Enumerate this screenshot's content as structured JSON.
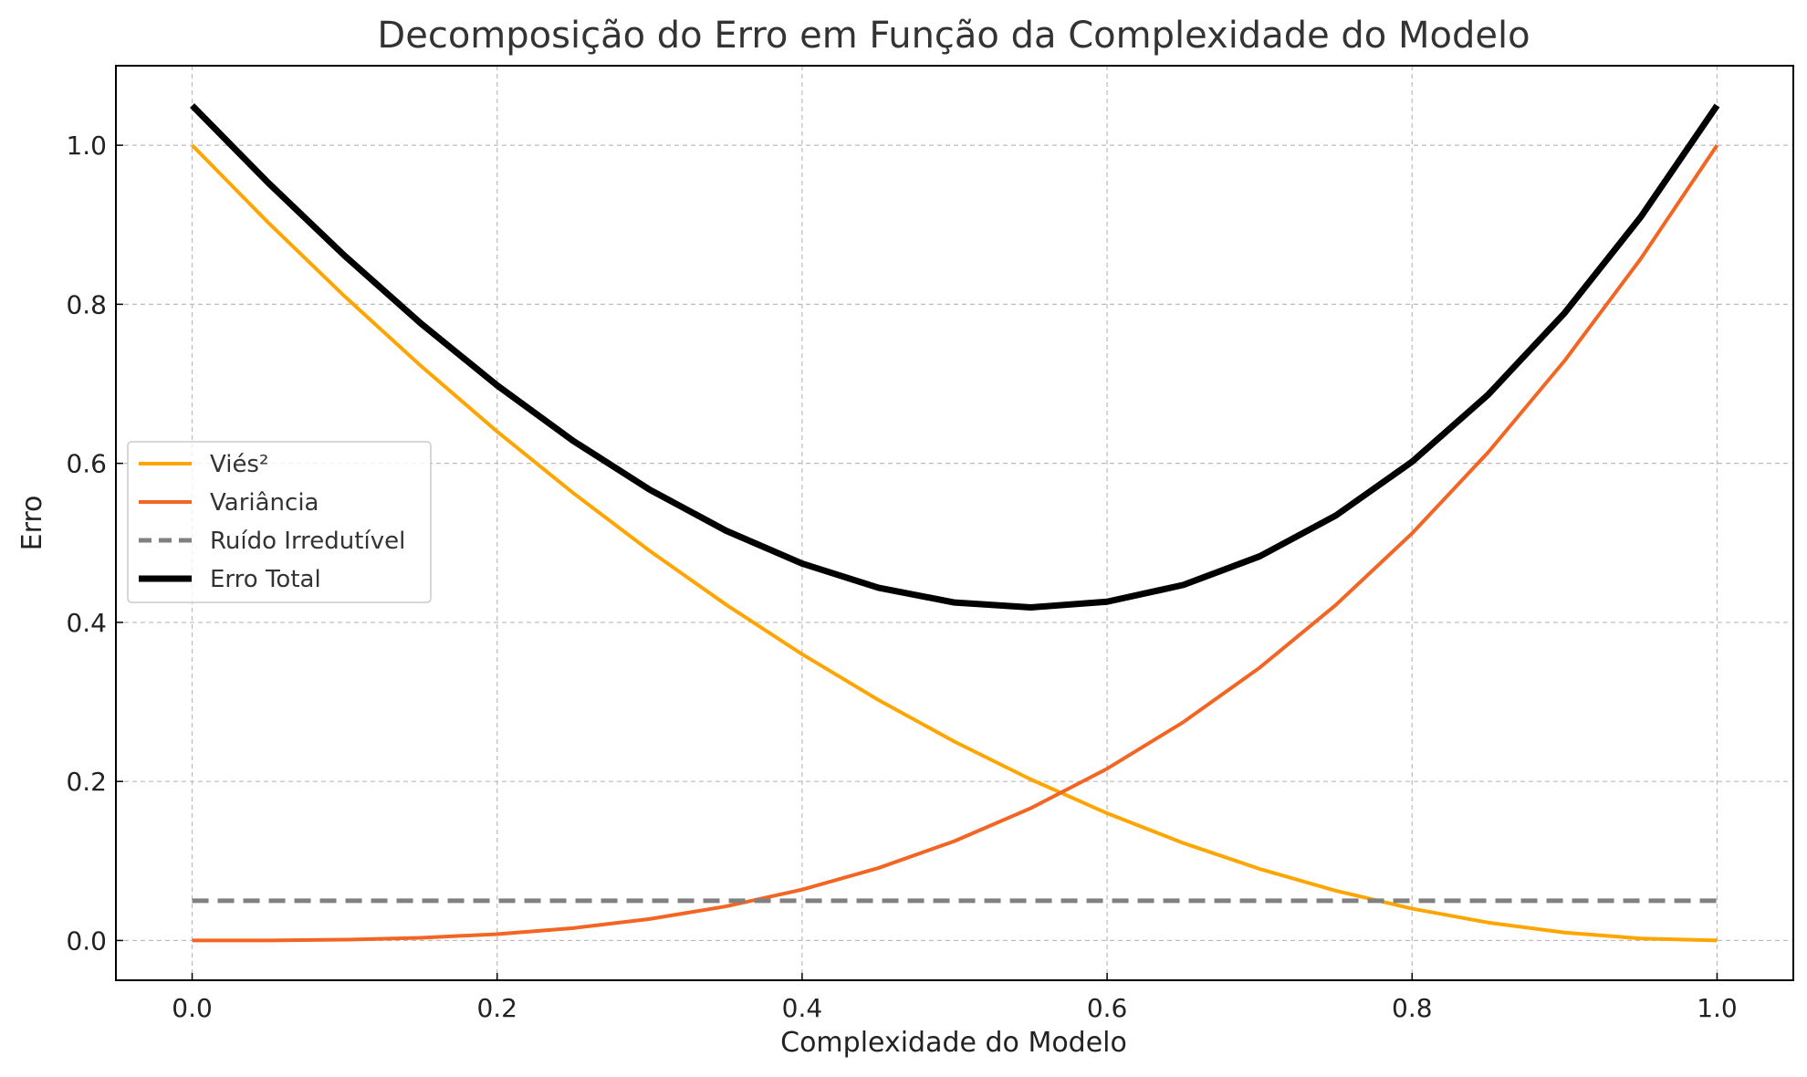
{
  "chart_data": {
    "type": "line",
    "title": "Decomposição do Erro em Função da Complexidade do Modelo",
    "xlabel": "Complexidade do Modelo",
    "ylabel": "Erro",
    "xlim": [
      -0.05,
      1.05
    ],
    "ylim": [
      -0.05,
      1.1
    ],
    "x_ticks": [
      0.0,
      0.2,
      0.4,
      0.6,
      0.8,
      1.0
    ],
    "x_tick_labels": [
      "0.0",
      "0.2",
      "0.4",
      "0.6",
      "0.8",
      "1.0"
    ],
    "y_ticks": [
      0.0,
      0.2,
      0.4,
      0.6,
      0.8,
      1.0
    ],
    "y_tick_labels": [
      "0.0",
      "0.2",
      "0.4",
      "0.6",
      "0.8",
      "1.0"
    ],
    "grid": true,
    "legend_position": "center-left",
    "x": [
      0.0,
      0.05,
      0.1,
      0.15,
      0.2,
      0.25,
      0.3,
      0.35,
      0.4,
      0.45,
      0.5,
      0.55,
      0.6,
      0.65,
      0.7,
      0.75,
      0.8,
      0.85,
      0.9,
      0.95,
      1.0
    ],
    "series": [
      {
        "name": "Viés²",
        "color": "#FFA500",
        "style": "solid",
        "values": [
          1.0,
          0.9025,
          0.81,
          0.7225,
          0.64,
          0.5625,
          0.49,
          0.4225,
          0.36,
          0.3025,
          0.25,
          0.2025,
          0.16,
          0.1225,
          0.09,
          0.0625,
          0.04,
          0.0225,
          0.01,
          0.0025,
          0.0
        ]
      },
      {
        "name": "Variância",
        "color": "#F26522",
        "style": "solid",
        "values": [
          0.0,
          0.0001,
          0.001,
          0.0034,
          0.008,
          0.0156,
          0.027,
          0.0429,
          0.064,
          0.0911,
          0.125,
          0.1664,
          0.216,
          0.2746,
          0.343,
          0.4219,
          0.512,
          0.6141,
          0.729,
          0.8574,
          1.0
        ]
      },
      {
        "name": "Ruído Irredutível",
        "color": "#808080",
        "style": "dashed",
        "values": [
          0.05,
          0.05,
          0.05,
          0.05,
          0.05,
          0.05,
          0.05,
          0.05,
          0.05,
          0.05,
          0.05,
          0.05,
          0.05,
          0.05,
          0.05,
          0.05,
          0.05,
          0.05,
          0.05,
          0.05,
          0.05
        ]
      },
      {
        "name": "Erro Total",
        "color": "#000000",
        "style": "solid-thick",
        "values": [
          1.05,
          0.9526,
          0.861,
          0.7759,
          0.698,
          0.6281,
          0.567,
          0.5154,
          0.474,
          0.4436,
          0.425,
          0.4189,
          0.426,
          0.4471,
          0.483,
          0.5344,
          0.602,
          0.6866,
          0.789,
          0.9099,
          1.05
        ]
      }
    ]
  }
}
